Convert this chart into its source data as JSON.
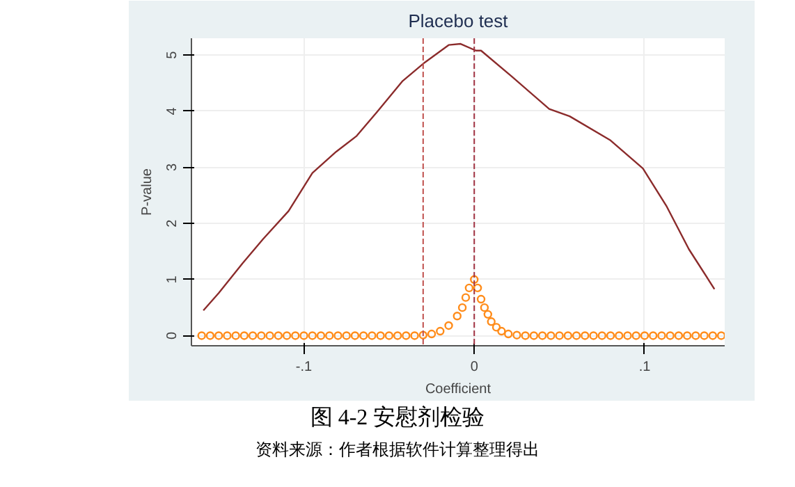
{
  "chart_data": {
    "type": "line",
    "title": "Placebo test",
    "xlabel": "Coefficient",
    "ylabel": "P-value",
    "xlim": [
      -0.166,
      0.147
    ],
    "ylim": [
      -0.18,
      5.3
    ],
    "xticks": [
      {
        "value": -0.1,
        "label": "-.1"
      },
      0,
      {
        "value": 0.1,
        "label": ".1"
      }
    ],
    "yticks": [
      0,
      1,
      2,
      3,
      4,
      5
    ],
    "grid": true,
    "series": [
      {
        "color": "#8b2b2b",
        "x": [
          -0.159,
          -0.15,
          -0.136,
          -0.124,
          -0.109,
          -0.095,
          -0.081,
          -0.069,
          -0.057,
          -0.042,
          -0.029,
          -0.015,
          -0.008,
          0.001,
          0.004,
          0.022,
          0.044,
          0.056,
          0.08,
          0.099,
          0.113,
          0.126,
          0.141
        ],
        "values": [
          0.45,
          0.76,
          1.29,
          1.72,
          2.22,
          2.9,
          3.28,
          3.56,
          3.99,
          4.54,
          4.87,
          5.18,
          5.2,
          5.08,
          5.08,
          4.62,
          4.04,
          3.91,
          3.48,
          2.98,
          2.3,
          1.54,
          0.83
        ]
      },
      {
        "type": "scatter",
        "color": "#ff8c1a",
        "marker": "circle",
        "x": [
          -0.16,
          -0.155,
          -0.15,
          -0.145,
          -0.14,
          -0.135,
          -0.13,
          -0.125,
          -0.12,
          -0.115,
          -0.11,
          -0.105,
          -0.1,
          -0.095,
          -0.09,
          -0.085,
          -0.08,
          -0.075,
          -0.07,
          -0.065,
          -0.06,
          -0.055,
          -0.05,
          -0.045,
          -0.04,
          -0.035,
          -0.03,
          -0.025,
          -0.02,
          -0.015,
          -0.01,
          -0.007,
          -0.005,
          -0.003,
          0,
          0.002,
          0.004,
          0.006,
          0.008,
          0.01,
          0.013,
          0.016,
          0.02,
          0.025,
          0.03,
          0.035,
          0.04,
          0.045,
          0.05,
          0.055,
          0.06,
          0.065,
          0.07,
          0.075,
          0.08,
          0.085,
          0.09,
          0.095,
          0.1,
          0.105,
          0.11,
          0.115,
          0.12,
          0.125,
          0.13,
          0.135,
          0.14,
          0.145
        ],
        "values": [
          0,
          0,
          0,
          0,
          0,
          0,
          0,
          0,
          0,
          0,
          0,
          0,
          0,
          0,
          0,
          0,
          0,
          0,
          0,
          0,
          0,
          0,
          0,
          0,
          0,
          0,
          0.01,
          0.03,
          0.08,
          0.18,
          0.35,
          0.5,
          0.68,
          0.85,
          1.0,
          0.85,
          0.65,
          0.5,
          0.38,
          0.25,
          0.15,
          0.08,
          0.03,
          0.01,
          0,
          0,
          0,
          0,
          0,
          0,
          0,
          0,
          0,
          0,
          0,
          0,
          0,
          0,
          0,
          0,
          0,
          0,
          0,
          0,
          0,
          0,
          0,
          0
        ]
      }
    ],
    "ref_lines": [
      {
        "axis": "x",
        "value": -0.03,
        "color": "#c0504d",
        "line_style": "dashed"
      },
      {
        "axis": "x",
        "value": 0,
        "color": "#a03040",
        "line_style": "dashed"
      }
    ],
    "annotations": [
      "图 4-2 安慰剂检验",
      "资料来源：作者根据软件计算整理得出"
    ]
  }
}
